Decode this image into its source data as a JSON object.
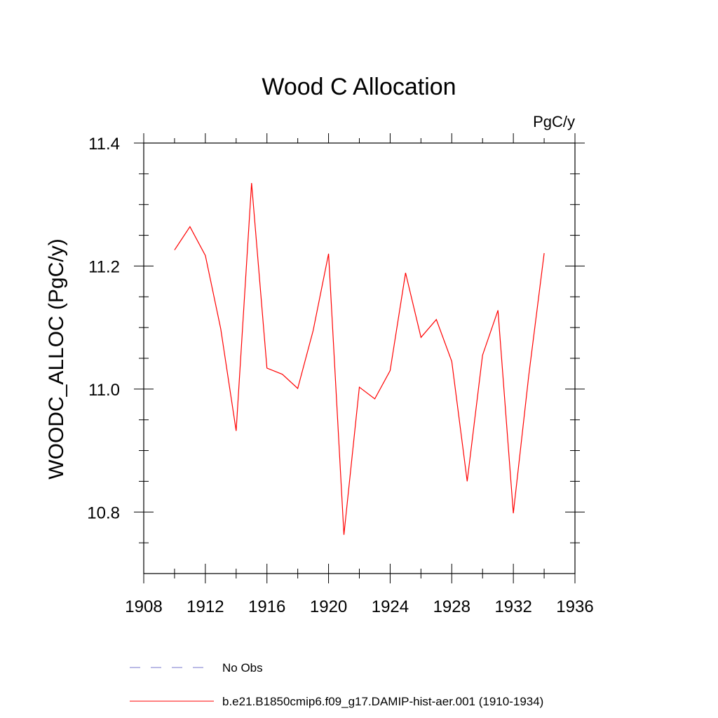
{
  "chart_data": {
    "type": "line",
    "title": "Wood C Allocation",
    "units_label": "PgC/y",
    "xlabel": "",
    "ylabel": "WOODC_ALLOC  (PgC/y)",
    "xlim": [
      1908,
      1936
    ],
    "ylim": [
      10.7,
      11.4
    ],
    "x_ticks": [
      1908,
      1912,
      1916,
      1920,
      1924,
      1928,
      1932,
      1936
    ],
    "x_tick_labels": [
      "1908",
      "1912",
      "1916",
      "1920",
      "1924",
      "1928",
      "1932",
      "1936"
    ],
    "y_ticks": [
      10.8,
      11.0,
      11.2,
      11.4
    ],
    "y_tick_labels": [
      "10.8",
      "11.0",
      "11.2",
      "11.4"
    ],
    "x_minor_step": 2,
    "y_minor_step": 0.05,
    "grid": false,
    "legend_placement": "bottom",
    "series": [
      {
        "name": "b.e21.B1850cmip6.f09_g17.DAMIP-hist-aer.001 (1910-1934)",
        "color": "#ff0000",
        "dash": "solid",
        "x": [
          1910,
          1911,
          1912,
          1913,
          1914,
          1915,
          1916,
          1917,
          1918,
          1919,
          1920,
          1921,
          1922,
          1923,
          1924,
          1925,
          1926,
          1927,
          1928,
          1929,
          1930,
          1931,
          1932,
          1933,
          1934
        ],
        "y": [
          11.226,
          11.264,
          11.217,
          11.098,
          10.932,
          11.335,
          11.034,
          11.024,
          11.001,
          11.095,
          11.22,
          10.763,
          11.003,
          10.984,
          11.03,
          11.189,
          11.084,
          11.113,
          11.045,
          10.85,
          11.055,
          11.128,
          10.798,
          11.022,
          11.221
        ]
      }
    ],
    "legend": [
      {
        "label": "No Obs",
        "color": "#7777cc",
        "dash": "dashed"
      },
      {
        "label": "b.e21.B1850cmip6.f09_g17.DAMIP-hist-aer.001 (1910-1934)",
        "color": "#ff0000",
        "dash": "solid"
      }
    ]
  }
}
